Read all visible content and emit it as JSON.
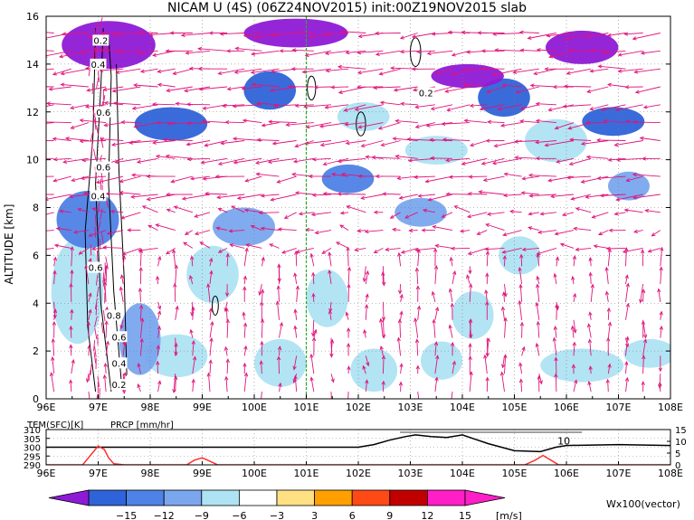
{
  "title": "NICAM U (4S) (06Z24NOV2015) init:00Z19NOV2015 slab",
  "colors": {
    "palette": [
      "#8f1ad6",
      "#2f63d9",
      "#4e82e6",
      "#7aa6ee",
      "#aee3f3",
      "#ffffff",
      "#ffe083",
      "#ffa000",
      "#ff4a16",
      "#c00000",
      "#ff1fc6"
    ],
    "vector": "#e0147a",
    "contour": "#000000",
    "marker_line": "#20b020",
    "tem_line": "#000000",
    "prcp_line": "#ff3030",
    "prcp_label": "#e03030",
    "vector_label": "#c0208a"
  },
  "chart_data": [
    {
      "type": "heatmap",
      "panel": "main",
      "ylabel": "ALTITUDE [km]",
      "xlim": [
        96,
        108
      ],
      "ylim": [
        0,
        16
      ],
      "x_ticks": [
        "96E",
        "97E",
        "98E",
        "99E",
        "100E",
        "101E",
        "102E",
        "103E",
        "104E",
        "105E",
        "106E",
        "107E",
        "108E"
      ],
      "y_ticks": [
        "0",
        "2",
        "4",
        "6",
        "8",
        "10",
        "12",
        "14",
        "16"
      ],
      "grid": true,
      "marker_x": 101,
      "level_bands": [
        {
          "top": 16,
          "bottom": 14.0,
          "value": -15
        },
        {
          "top": 14.0,
          "bottom": 12.5,
          "value": -12
        },
        {
          "top": 12.5,
          "bottom": 10.5,
          "value": -9
        },
        {
          "top": 10.5,
          "bottom": 8.5,
          "value": -6
        },
        {
          "top": 8.5,
          "bottom": 6.5,
          "value": -3
        },
        {
          "top": 6.5,
          "bottom": 0,
          "value": 0
        }
      ],
      "contour_labels": [
        {
          "x": 97.05,
          "y": 15.0,
          "text": "0.2"
        },
        {
          "x": 97.0,
          "y": 14.0,
          "text": "0.4"
        },
        {
          "x": 97.1,
          "y": 12.0,
          "text": "0.6"
        },
        {
          "x": 97.1,
          "y": 9.7,
          "text": "0.6"
        },
        {
          "x": 97.0,
          "y": 8.5,
          "text": "0.4"
        },
        {
          "x": 96.95,
          "y": 5.5,
          "text": "0.6"
        },
        {
          "x": 97.3,
          "y": 3.5,
          "text": "0.8"
        },
        {
          "x": 97.4,
          "y": 2.6,
          "text": "0.6"
        },
        {
          "x": 97.4,
          "y": 1.5,
          "text": "0.4"
        },
        {
          "x": 97.4,
          "y": 0.6,
          "text": "0.2"
        },
        {
          "x": 103.3,
          "y": 12.8,
          "text": "0.2"
        }
      ]
    },
    {
      "type": "line",
      "panel": "bottom",
      "series": [
        {
          "name": "TEM(SFC)[K]",
          "axis": "left",
          "x": [
            96,
            96.5,
            97,
            98,
            99,
            100,
            101,
            101.5,
            102,
            102.3,
            102.6,
            102.9,
            103.1,
            103.4,
            103.7,
            104,
            104.2,
            104.5,
            105,
            105.5,
            105.8,
            106,
            107,
            108
          ],
          "y": [
            300,
            300,
            300,
            300,
            300,
            300,
            300,
            300,
            300,
            301.5,
            304,
            306,
            307,
            306,
            305.5,
            307,
            305,
            302,
            298,
            297.5,
            300,
            301,
            301.5,
            301
          ]
        },
        {
          "name": "PRCP [mm/hr]",
          "axis": "right",
          "x": [
            96,
            96.7,
            96.85,
            97.0,
            97.12,
            97.2,
            97.3,
            97.5,
            98.7,
            98.85,
            99.0,
            99.15,
            99.3,
            105.2,
            105.4,
            105.55,
            105.7,
            105.85,
            108
          ],
          "y": [
            0,
            0,
            4,
            8,
            6.5,
            3,
            0.5,
            0,
            0,
            2,
            3,
            1.5,
            0,
            0,
            2,
            4,
            2,
            0,
            0
          ]
        }
      ],
      "left_ticks": [
        "290",
        "295",
        "300",
        "305",
        "310"
      ],
      "right_ticks": [
        "0",
        "5",
        "10",
        "15"
      ],
      "ylim_left": [
        290,
        310
      ],
      "ylim_right": [
        0,
        15
      ],
      "x_ticks": [
        "96E",
        "97E",
        "98E",
        "99E",
        "100E",
        "101E",
        "102E",
        "103E",
        "104E",
        "105E",
        "106E",
        "107E",
        "108E"
      ],
      "annotation": {
        "x": 105.95,
        "y": 300,
        "text": "10"
      }
    }
  ],
  "colorbar": {
    "labels": [
      "−15",
      "−12",
      "−9",
      "−6",
      "−3",
      "3",
      "6",
      "9",
      "12",
      "15"
    ],
    "unit": "[m/s]",
    "vector_label": "Wx100(vector)"
  }
}
